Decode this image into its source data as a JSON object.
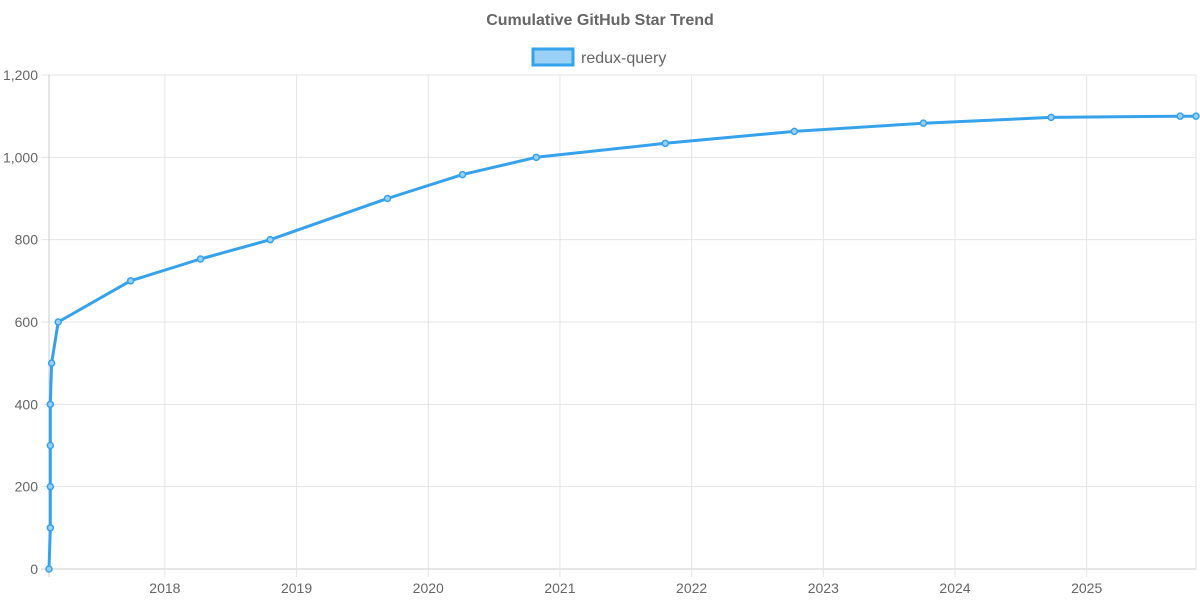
{
  "chart_data": {
    "type": "line",
    "title": "Cumulative GitHub Star Trend",
    "xlabel": "",
    "ylabel": "",
    "legend_position": "top-center",
    "grid": true,
    "xlim": [
      2017.12,
      2025.83
    ],
    "ylim": [
      0,
      1200
    ],
    "x_ticks": [
      2018,
      2019,
      2020,
      2021,
      2022,
      2023,
      2024,
      2025
    ],
    "x_tick_labels": [
      "2018",
      "2019",
      "2020",
      "2021",
      "2022",
      "2023",
      "2024",
      "2025"
    ],
    "y_ticks": [
      0,
      200,
      400,
      600,
      800,
      1000,
      1200
    ],
    "y_tick_labels": [
      "0",
      "200",
      "400",
      "600",
      "800",
      "1,000",
      "1,200"
    ],
    "series": [
      {
        "name": "redux-query",
        "color": "#36a2eb",
        "fill": "#9ad0f5",
        "x": [
          2017.12,
          2017.13,
          2017.13,
          2017.13,
          2017.13,
          2017.14,
          2017.19,
          2017.74,
          2018.27,
          2018.8,
          2019.69,
          2020.26,
          2020.82,
          2021.8,
          2022.78,
          2023.76,
          2024.73,
          2025.71,
          2025.83
        ],
        "y": [
          0,
          100,
          200,
          300,
          400,
          500,
          600,
          700,
          753,
          800,
          900,
          958,
          1000,
          1034,
          1063,
          1083,
          1097,
          1100,
          1100
        ]
      }
    ]
  }
}
